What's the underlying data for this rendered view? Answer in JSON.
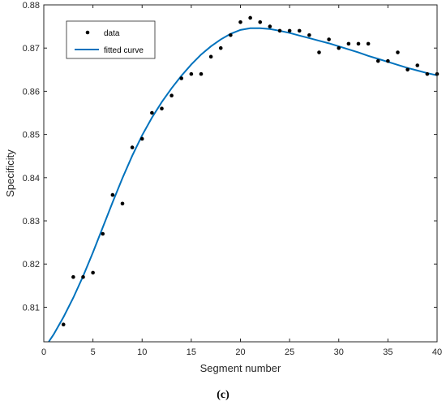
{
  "caption": "(c)",
  "chart_data": {
    "type": "scatter",
    "title": "",
    "xlabel": "Segment number",
    "ylabel": "Specificity",
    "xlim": [
      0,
      40
    ],
    "ylim": [
      0.802,
      0.88
    ],
    "xticks": [
      0,
      5,
      10,
      15,
      20,
      25,
      30,
      35,
      40
    ],
    "yticks": [
      0.81,
      0.82,
      0.83,
      0.84,
      0.85,
      0.86,
      0.87,
      0.88
    ],
    "ytick_labels": [
      "0.81",
      "0.82",
      "0.83",
      "0.84",
      "0.85",
      "0.86",
      "0.87",
      "0.88"
    ],
    "legend": {
      "placement": "top-left",
      "entries": [
        "data",
        "fitted curve"
      ]
    },
    "grid": false,
    "colors": {
      "data": "#000000",
      "fit": "#0072BD"
    },
    "series": [
      {
        "name": "data",
        "kind": "points",
        "x": [
          2,
          3,
          4,
          5,
          6,
          7,
          8,
          9,
          10,
          11,
          12,
          13,
          14,
          15,
          16,
          17,
          18,
          19,
          20,
          21,
          22,
          23,
          24,
          25,
          26,
          27,
          28,
          29,
          30,
          31,
          32,
          33,
          34,
          35,
          36,
          37,
          38,
          39,
          40
        ],
        "y": [
          0.806,
          0.817,
          0.817,
          0.818,
          0.827,
          0.836,
          0.834,
          0.847,
          0.849,
          0.855,
          0.856,
          0.859,
          0.863,
          0.864,
          0.864,
          0.868,
          0.87,
          0.873,
          0.876,
          0.877,
          0.876,
          0.875,
          0.874,
          0.874,
          0.874,
          0.873,
          0.869,
          0.872,
          0.87,
          0.871,
          0.871,
          0.871,
          0.867,
          0.867,
          0.869,
          0.865,
          0.866,
          0.864,
          0.864
        ]
      },
      {
        "name": "fitted curve",
        "kind": "line",
        "x": [
          0.5,
          1,
          2,
          3,
          4,
          5,
          6,
          7,
          8,
          9,
          10,
          11,
          12,
          13,
          14,
          15,
          16,
          17,
          18,
          19,
          20,
          21,
          22,
          23,
          24,
          25,
          26,
          27,
          28,
          29,
          30,
          31,
          32,
          33,
          34,
          35,
          36,
          37,
          38,
          39,
          40
        ],
        "y": [
          0.802,
          0.8037,
          0.8077,
          0.8122,
          0.8172,
          0.8227,
          0.8285,
          0.8343,
          0.8399,
          0.8451,
          0.8498,
          0.8539,
          0.8575,
          0.8607,
          0.8636,
          0.8662,
          0.8685,
          0.8704,
          0.872,
          0.8733,
          0.8742,
          0.8746,
          0.8746,
          0.8744,
          0.874,
          0.8735,
          0.8729,
          0.8723,
          0.8717,
          0.8711,
          0.8704,
          0.8697,
          0.869,
          0.8682,
          0.8675,
          0.8668,
          0.8661,
          0.8654,
          0.8648,
          0.8642,
          0.8637
        ]
      }
    ]
  }
}
